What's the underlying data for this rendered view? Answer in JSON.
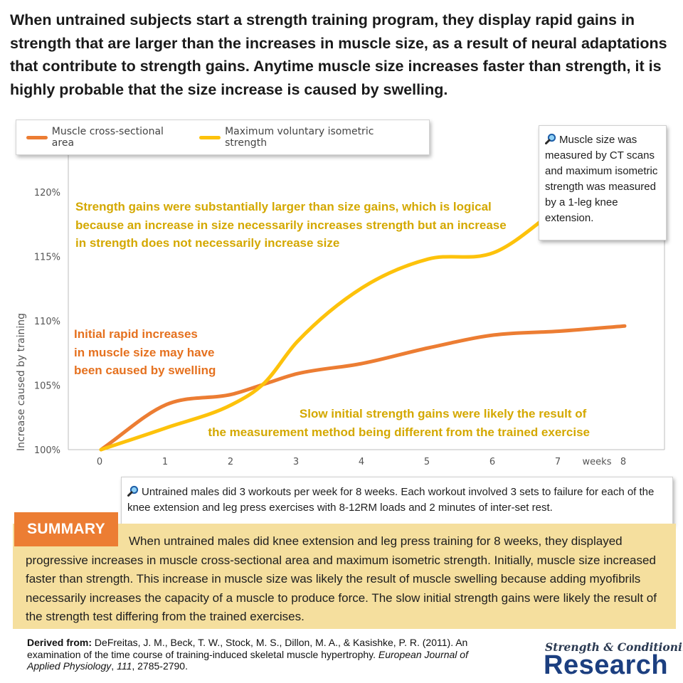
{
  "headline": "When untrained subjects start a strength training program, they display rapid gains in strength that are larger than the increases in muscle size, as a result of neural adaptations that contribute to strength gains. Anytime muscle size increases faster than strength, it is highly probable that the size increase is caused by swelling.",
  "colors": {
    "muscle": "#ec7d33",
    "strength": "#fdc20b",
    "annotation_gold": "#d4a800",
    "annotation_orange": "#e5711f",
    "summary_bg": "#f5df9e",
    "summary_tab": "#ec7d33",
    "logo_blue": "#1c3f80"
  },
  "chart_data": {
    "type": "line",
    "x": [
      0,
      1,
      2,
      2.5,
      3,
      4,
      5,
      6,
      7,
      8
    ],
    "series": [
      {
        "name": "Muscle cross-sectional area",
        "color": "#ec7d33",
        "x": [
          0,
          1,
          2,
          2.5,
          3,
          4,
          5,
          6,
          7,
          8
        ],
        "values": [
          100,
          103.5,
          104.3,
          105.1,
          105.9,
          106.7,
          107.9,
          108.9,
          109.2,
          109.6
        ]
      },
      {
        "name": "Maximum voluntary isometric strength",
        "color": "#fdc20b",
        "x": [
          0,
          1,
          2,
          2.5,
          3,
          4,
          5,
          6,
          7
        ],
        "values": [
          100,
          101.7,
          103.5,
          105.2,
          108.4,
          112.6,
          114.8,
          115.3,
          118.8
        ]
      }
    ],
    "xticks": [
      0,
      1,
      2,
      3,
      4,
      5,
      6,
      7,
      8
    ],
    "yticks": [
      100,
      105,
      110,
      115,
      120
    ],
    "ytick_labels": [
      "100%",
      "105%",
      "110%",
      "115%",
      "120%"
    ],
    "xlim": [
      0,
      8
    ],
    "ylim": [
      100,
      120
    ],
    "xlabel": "weeks",
    "ylabel": "Increase caused by training",
    "grid": false,
    "legend_position": "top-left"
  },
  "annotations": {
    "strength_gains": "Strength gains were substantially larger than size gains, which is logical because an increase in size necessarily increases strength but an increase in strength does not necessarily increase size",
    "rapid_increase": "Initial rapid increases in muscle size may have been caused by swelling",
    "slow_strength": "Slow initial strength gains were likely the result of the measurement method being different from the trained exercise"
  },
  "notes": {
    "measurement": "Muscle size was measured by CT scans and maximum isometric strength was measured by a 1-leg knee extension.",
    "protocol": "Untrained males did 3 workouts per week for 8 weeks. Each workout involved 3 sets to failure for each of the knee extension and leg press exercises with 8-12RM loads and 2 minutes of inter-set rest.",
    "icon": "magnifying-glass-icon"
  },
  "summary": {
    "label": "SUMMARY",
    "text": "When untrained males did knee extension and leg press training for 8 weeks, they displayed progressive increases in muscle cross-sectional area and maximum isometric strength. Initially, muscle size increased faster than strength. This increase in muscle size was likely the result of muscle swelling because adding myofibrils necessarily increases the capacity of a muscle to produce force. The slow initial strength gains were likely the result of the strength test differing from the trained exercises."
  },
  "citation": {
    "label": "Derived from:",
    "authors": "DeFreitas, J. M., Beck, T. W., Stock, M. S., Dillon, M. A., & Kasishke, P. R. (2011). An examination of the time course of training-induced skeletal muscle hypertrophy.",
    "journal": "European Journal of Applied Physiology",
    "volume": "111",
    "pages": ", 2785-2790."
  },
  "logo": {
    "line1": "Strength & Conditioning",
    "line2": "Research"
  }
}
